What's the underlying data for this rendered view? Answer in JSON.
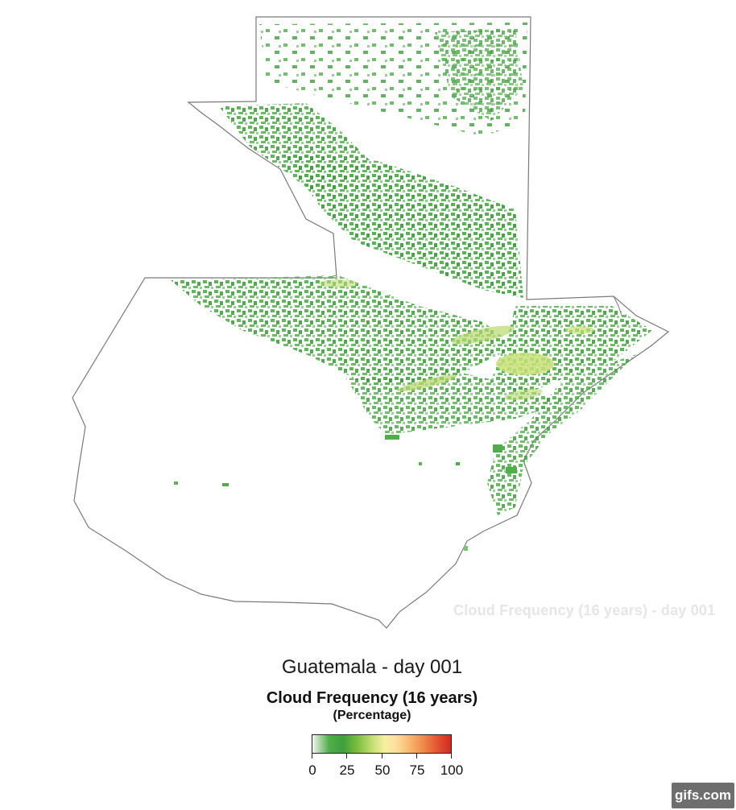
{
  "map": {
    "region": "Guatemala",
    "watermark": "Cloud Frequency (16 years) - day 001",
    "colors": {
      "border": "#7a7a7a",
      "low_green": "#4fae4a",
      "dark_green": "#3e9f3c",
      "light_green": "#9fd19a",
      "yellow_green": "#c8e078"
    }
  },
  "title": "Guatemala - day 001",
  "legend": {
    "title": "Cloud Frequency (16 years)",
    "subtitle": "(Percentage)",
    "range": [
      0,
      100
    ],
    "ticks": [
      "0",
      "25",
      "50",
      "75",
      "100"
    ],
    "colors": [
      "#f2f6f2",
      "#4fae4a",
      "#c8e078",
      "#f6f0a0",
      "#f9b870",
      "#ef8a48",
      "#cf2a22"
    ]
  },
  "badge": "gifs.com"
}
